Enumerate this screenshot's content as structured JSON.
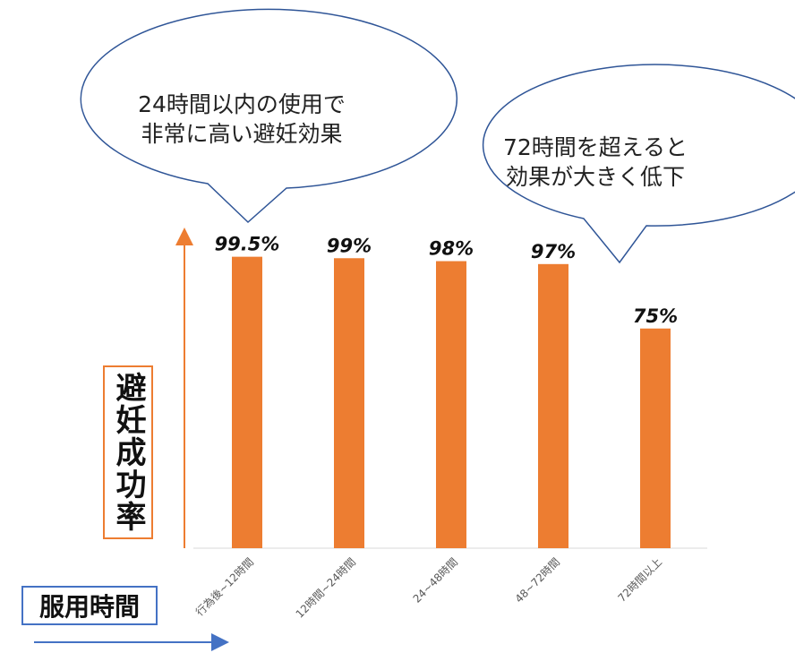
{
  "chart_data": {
    "type": "bar",
    "title": "",
    "ylabel": "避妊成功率",
    "xlabel": "服用時間",
    "categories": [
      "行為後~12時間",
      "12時間~24時間",
      "24~48時間",
      "48~72時間",
      "72時間以上"
    ],
    "values": [
      99.5,
      99,
      98,
      97,
      75
    ],
    "value_labels": [
      "99.5%",
      "99%",
      "98%",
      "97%",
      "75%"
    ],
    "ylim": [
      0,
      100
    ],
    "bar_color": "#ED7D31",
    "grid": false
  },
  "callouts": [
    {
      "text": "24時間以内の使用で\n非常に高い避妊効果"
    },
    {
      "text": "72時間を超えると\n効果が大きく低下"
    }
  ],
  "colors": {
    "y_axis_arrow": "#ED7D31",
    "x_axis_arrow": "#4472C4",
    "bubble_border": "#2F5597",
    "category_text": "#595959"
  }
}
